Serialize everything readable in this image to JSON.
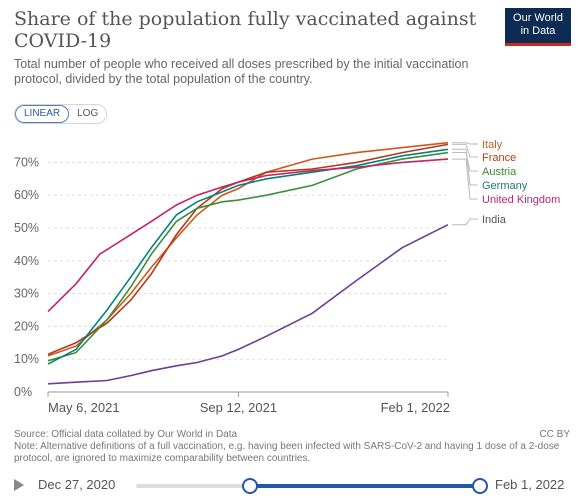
{
  "title": "Share of the population fully vaccinated against COVID-19",
  "subtitle": "Total number of people who received all doses prescribed by the initial vaccination protocol, divided by the total population of the country.",
  "logo": {
    "line1": "Our World",
    "line2": "in Data",
    "bar_color": "#ce261e",
    "bg_color": "#0d2c54"
  },
  "scale_toggle": {
    "linear": "LINEAR",
    "log": "LOG",
    "selected": "LINEAR"
  },
  "footer": {
    "source": "Source: Official data collated by Our World in Data",
    "note": "Note: Alternative definitions of a full vaccination, e.g. having been infected with SARS-CoV-2 and having 1 dose of a 2-dose protocol, are ignored to maximize comparability between countries.",
    "license": "CC BY"
  },
  "timeline": {
    "start_label": "Dec 27, 2020",
    "end_label": "Feb 1, 2022",
    "start_position": 0.33,
    "end_position": 1.0
  },
  "chart_data": {
    "type": "line",
    "title": "Share of the population fully vaccinated against COVID-19",
    "xlabel": "",
    "ylabel": "",
    "x_ticks": [
      "May 6, 2021",
      "Sep 12, 2021",
      "Feb 1, 2022"
    ],
    "x_range": [
      "2021-05-06",
      "2022-02-01"
    ],
    "y_ticks": [
      "0%",
      "10%",
      "20%",
      "30%",
      "40%",
      "50%",
      "60%",
      "70%"
    ],
    "ylim": [
      0,
      75
    ],
    "grid": "horizontal dashed",
    "legend": "right, labels at line ends",
    "series": [
      {
        "name": "Italy",
        "color": "#d1561e",
        "points": [
          [
            "2021-05-06",
            11
          ],
          [
            "2021-05-25",
            14
          ],
          [
            "2021-06-15",
            22
          ],
          [
            "2021-07-01",
            30
          ],
          [
            "2021-07-15",
            38
          ],
          [
            "2021-08-01",
            47
          ],
          [
            "2021-08-15",
            54
          ],
          [
            "2021-09-01",
            60
          ],
          [
            "2021-09-12",
            62
          ],
          [
            "2021-10-01",
            67
          ],
          [
            "2021-11-01",
            71
          ],
          [
            "2021-12-01",
            73
          ],
          [
            "2022-01-01",
            74.5
          ],
          [
            "2022-02-01",
            76
          ]
        ]
      },
      {
        "name": "France",
        "color": "#a2559c",
        "points": [
          [
            "2021-05-06",
            11.5
          ],
          [
            "2021-05-25",
            15
          ],
          [
            "2021-06-15",
            21
          ],
          [
            "2021-07-01",
            28
          ],
          [
            "2021-07-15",
            36
          ],
          [
            "2021-08-01",
            48
          ],
          [
            "2021-08-15",
            56
          ],
          [
            "2021-09-01",
            62
          ],
          [
            "2021-09-12",
            64
          ],
          [
            "2021-10-01",
            67
          ],
          [
            "2021-11-01",
            68
          ],
          [
            "2021-12-01",
            70
          ],
          [
            "2022-01-01",
            73
          ],
          [
            "2022-02-01",
            75.5
          ]
        ]
      },
      {
        "name": "Austria",
        "color": "#3d8e3a",
        "points": [
          [
            "2021-05-06",
            9.5
          ],
          [
            "2021-05-25",
            12
          ],
          [
            "2021-06-15",
            22
          ],
          [
            "2021-07-01",
            32
          ],
          [
            "2021-07-15",
            42
          ],
          [
            "2021-08-01",
            52
          ],
          [
            "2021-08-15",
            56
          ],
          [
            "2021-09-01",
            58
          ],
          [
            "2021-09-12",
            58.5
          ],
          [
            "2021-10-01",
            60
          ],
          [
            "2021-11-01",
            63
          ],
          [
            "2021-12-01",
            68
          ],
          [
            "2022-01-01",
            71
          ],
          [
            "2022-02-01",
            73
          ]
        ]
      },
      {
        "name": "Germany",
        "color": "#00847e",
        "points": [
          [
            "2021-05-06",
            8.5
          ],
          [
            "2021-05-25",
            13
          ],
          [
            "2021-06-15",
            25
          ],
          [
            "2021-07-01",
            35
          ],
          [
            "2021-07-15",
            44
          ],
          [
            "2021-08-01",
            54
          ],
          [
            "2021-08-15",
            58
          ],
          [
            "2021-09-01",
            61
          ],
          [
            "2021-09-12",
            63
          ],
          [
            "2021-10-01",
            65
          ],
          [
            "2021-11-01",
            67
          ],
          [
            "2021-12-01",
            69
          ],
          [
            "2022-01-01",
            72
          ],
          [
            "2022-02-01",
            74
          ]
        ]
      },
      {
        "name": "United Kingdom",
        "color": "#b13507",
        "points": [
          [
            "2021-05-06",
            24.5
          ],
          [
            "2021-05-25",
            33
          ],
          [
            "2021-06-10",
            42
          ],
          [
            "2021-07-01",
            48
          ],
          [
            "2021-07-15",
            52
          ],
          [
            "2021-08-01",
            57
          ],
          [
            "2021-08-15",
            60
          ],
          [
            "2021-09-01",
            62.5
          ],
          [
            "2021-09-12",
            64
          ],
          [
            "2021-10-01",
            66
          ],
          [
            "2021-11-01",
            67.5
          ],
          [
            "2021-12-01",
            68.5
          ],
          [
            "2022-01-01",
            70
          ],
          [
            "2022-02-01",
            71
          ]
        ]
      },
      {
        "name": "India",
        "color": "#883039",
        "points": [
          [
            "2021-05-06",
            2.5
          ],
          [
            "2021-05-25",
            3
          ],
          [
            "2021-06-15",
            3.5
          ],
          [
            "2021-07-01",
            5
          ],
          [
            "2021-07-15",
            6.5
          ],
          [
            "2021-08-01",
            8
          ],
          [
            "2021-08-15",
            9
          ],
          [
            "2021-09-01",
            11
          ],
          [
            "2021-09-12",
            13
          ],
          [
            "2021-10-01",
            17
          ],
          [
            "2021-11-01",
            24
          ],
          [
            "2021-12-01",
            34
          ],
          [
            "2022-01-01",
            44
          ],
          [
            "2022-02-01",
            51
          ]
        ]
      }
    ],
    "legend_colors": {
      "Italy": "#c15f1e",
      "France": "#b33a18",
      "Austria": "#3a8a3a",
      "Germany": "#1b7a74",
      "United Kingdom": "#c0246b",
      "India": "#555555"
    }
  }
}
